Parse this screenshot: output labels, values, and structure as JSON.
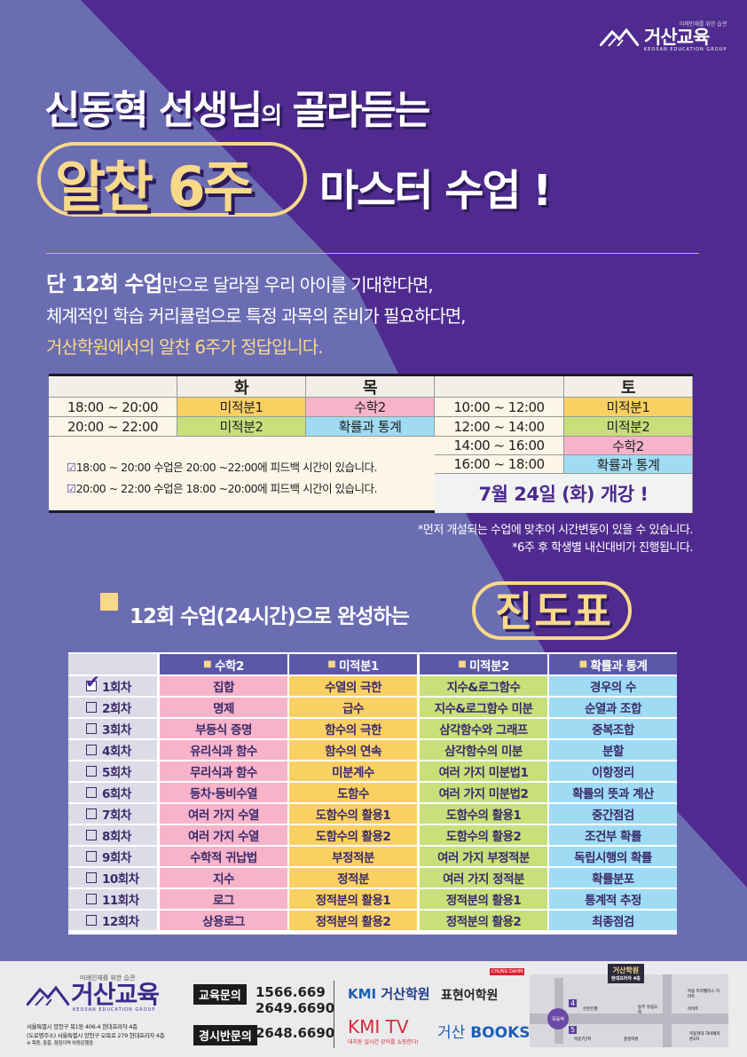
{
  "colors": {
    "purple": "#4f2b8f",
    "periwinkle": "#6b6db3",
    "yellow": "#f8d98a",
    "math2": "#f7b3c9",
    "calc1": "#fbd063",
    "calc2": "#c8df7a",
    "prob": "#9fdcf4"
  },
  "top_logo": {
    "tagline": "미래인재를 위한 습관",
    "name": "거산교육",
    "english": "KEOSAN EDUCATION GROUP"
  },
  "title": {
    "teacher": "신동혁 선생님",
    "particle": "의",
    "rest": "골라듣는",
    "highlight": "알찬 6주",
    "suffix": "마스터 수업 !"
  },
  "intro": {
    "line1_bold": "단 12회 수업",
    "line1_rest": "만으로 달라질 우리 아이를 기대한다면,",
    "line2": "체계적인 학습 커리큘럼으로 특정 과목의 준비가 필요하다면,",
    "line3": "거산학원에서의 알찬 6주가 정답입니다."
  },
  "schedule": {
    "weekday_headers": [
      "화",
      "목"
    ],
    "weekday_rows": [
      {
        "time": "18:00 ~ 20:00",
        "tue": "미적분1",
        "thu": "수학2"
      },
      {
        "time": "20:00 ~ 22:00",
        "tue": "미적분2",
        "thu": "확률과 통계"
      }
    ],
    "weekend_header": "토",
    "weekend_rows": [
      {
        "time": "10:00 ~ 12:00",
        "sat": "미적분1"
      },
      {
        "time": "12:00 ~ 14:00",
        "sat": "미적분2"
      },
      {
        "time": "14:00 ~ 16:00",
        "sat": "수학2"
      },
      {
        "time": "16:00 ~ 18:00",
        "sat": "확률과 통계"
      }
    ],
    "notes": [
      "18:00 ~ 20:00 수업은 20:00 ~22:00에 피드백 시간이 있습니다.",
      "20:00 ~ 22:00 수업은 18:00 ~20:00에 피드백 시간이 있습니다."
    ],
    "opening": "7월 24일 (화) 개강 !"
  },
  "footnotes": [
    "*먼저 개설되는 수업에 맞추어 시간변동이 있을 수 있습니다.",
    "*6주 후 학생별 내신대비가 진행됩니다."
  ],
  "progress": {
    "heading": "12회 수업(24시간)으로 완성하는",
    "heading_highlight": "진도표",
    "columns": [
      "수학2",
      "미적분1",
      "미적분2",
      "확률과 통계"
    ],
    "rows": [
      {
        "label": "1회차",
        "checked": true,
        "cells": [
          "집합",
          "수열의 극한",
          "지수&로그함수",
          "경우의 수"
        ]
      },
      {
        "label": "2회차",
        "checked": false,
        "cells": [
          "명제",
          "급수",
          "지수&로그함수 미분",
          "순열과 조합"
        ]
      },
      {
        "label": "3회차",
        "checked": false,
        "cells": [
          "부등식 증명",
          "함수의 극한",
          "삼각함수와 그래프",
          "중복조합"
        ]
      },
      {
        "label": "4회차",
        "checked": false,
        "cells": [
          "유리식과 함수",
          "함수의 연속",
          "삼각함수의 미분",
          "분할"
        ]
      },
      {
        "label": "5회차",
        "checked": false,
        "cells": [
          "무리식과 함수",
          "미분계수",
          "여러 가지 미분법1",
          "이항정리"
        ]
      },
      {
        "label": "6회차",
        "checked": false,
        "cells": [
          "등차·등비수열",
          "도함수",
          "여러 가지 미분법2",
          "확률의 뜻과 계산"
        ]
      },
      {
        "label": "7회차",
        "checked": false,
        "cells": [
          "여러 가지 수열",
          "도함수의 활용1",
          "도함수의 활용1",
          "중간점검"
        ]
      },
      {
        "label": "8회차",
        "checked": false,
        "cells": [
          "여러 가지 수열",
          "도함수의 활용2",
          "도함수의 활용2",
          "조건부 확률"
        ]
      },
      {
        "label": "9회차",
        "checked": false,
        "cells": [
          "수학적 귀납법",
          "부정적분",
          "여러 가지 부정적분",
          "독립시행의 확률"
        ]
      },
      {
        "label": "10회차",
        "checked": false,
        "cells": [
          "지수",
          "정적분",
          "여러 가지 정적분",
          "확률분포"
        ]
      },
      {
        "label": "11회차",
        "checked": false,
        "cells": [
          "로그",
          "정적분의 활용1",
          "정적분의 활용1",
          "통계적 추정"
        ]
      },
      {
        "label": "12회차",
        "checked": false,
        "cells": [
          "상용로그",
          "정적분의 활용2",
          "정적분의 활용2",
          "최종점검"
        ]
      }
    ]
  },
  "footer": {
    "logo_tagline": "미래인재를 위한 습관",
    "logo_name": "거산교육",
    "logo_english": "KEOSAN EDUCATION GROUP",
    "address": [
      "서울특별시 양천구 목1동 406-4 현대프라자 4층",
      "(도로명주소) 서울특별시 양천구 오목로 279 현대프라자 4층",
      "※ 목동, 중흥, 점점지역 차량운행중"
    ],
    "contacts": [
      {
        "label": "교육문의",
        "numbers": [
          "1566.669",
          "2649.6690"
        ]
      },
      {
        "label": "경시반문의",
        "numbers": [
          "2648.6690"
        ]
      }
    ],
    "brands": {
      "kmi": "KMI",
      "keosan_academy": "거산학원",
      "expression": "표현어학원",
      "expression_badge": "CHUNG DAHM",
      "kmitv": "KMI TV",
      "kmitv_tagline": "대치동 일시간 강의를 쇼핑한다!",
      "books_prefix": "거산",
      "books": "BOOKS"
    },
    "map": {
      "title": "거산학원",
      "subtitle": "현대프라자 4층",
      "station": "목동역",
      "exits": [
        "4",
        "5"
      ],
      "places": [
        "신한은행",
        "동부 유림오피",
        "목동 트라펠리스 이마트",
        "이마트",
        "목동7단지",
        "흥성학원",
        "목동현대 하이페리온2차"
      ]
    }
  }
}
